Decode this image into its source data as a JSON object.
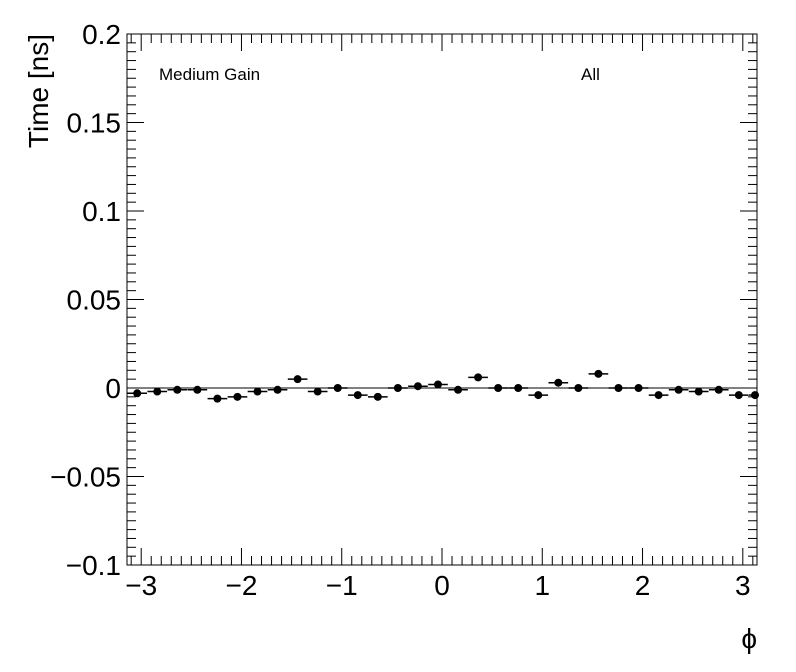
{
  "chart_data": {
    "type": "scatter",
    "title": "",
    "xlabel": "ϕ",
    "ylabel": "Time [ns]",
    "xlim": [
      -3.1416,
      3.1416
    ],
    "ylim": [
      -0.1,
      0.2
    ],
    "xticks": [
      -3,
      -2,
      -1,
      0,
      1,
      2,
      3
    ],
    "xtick_labels": [
      "−3",
      "−2",
      "−1",
      "0",
      "1",
      "2",
      "3"
    ],
    "yticks": [
      -0.1,
      -0.05,
      0,
      0.05,
      0.1,
      0.15,
      0.2
    ],
    "ytick_labels": [
      "−0.1",
      "−0.05",
      "0",
      "0.05",
      "0.1",
      "0.15",
      "0.2"
    ],
    "annotations": [
      "Medium Gain",
      "All"
    ],
    "x": [
      -3.04,
      -2.84,
      -2.64,
      -2.44,
      -2.24,
      -2.04,
      -1.84,
      -1.64,
      -1.44,
      -1.24,
      -1.04,
      -0.84,
      -0.64,
      -0.44,
      -0.24,
      -0.04,
      0.16,
      0.36,
      0.56,
      0.76,
      0.96,
      1.16,
      1.36,
      1.56,
      1.76,
      1.96,
      2.16,
      2.36,
      2.56,
      2.76,
      2.96,
      3.16
    ],
    "values": [
      -0.003,
      -0.002,
      -0.001,
      -0.001,
      -0.006,
      -0.005,
      -0.002,
      -0.001,
      0.005,
      -0.002,
      0.0,
      -0.004,
      -0.005,
      0.0,
      0.001,
      0.002,
      -0.001,
      0.006,
      0.0,
      0.0,
      -0.004,
      0.003,
      0.0,
      0.008,
      0.0,
      0.0,
      -0.004,
      -0.001,
      -0.002,
      -0.001,
      -0.004,
      -0.004
    ],
    "x_bin_halfwidth": 0.098,
    "marker": "filled-circle",
    "grid": false,
    "color": "#000000"
  }
}
